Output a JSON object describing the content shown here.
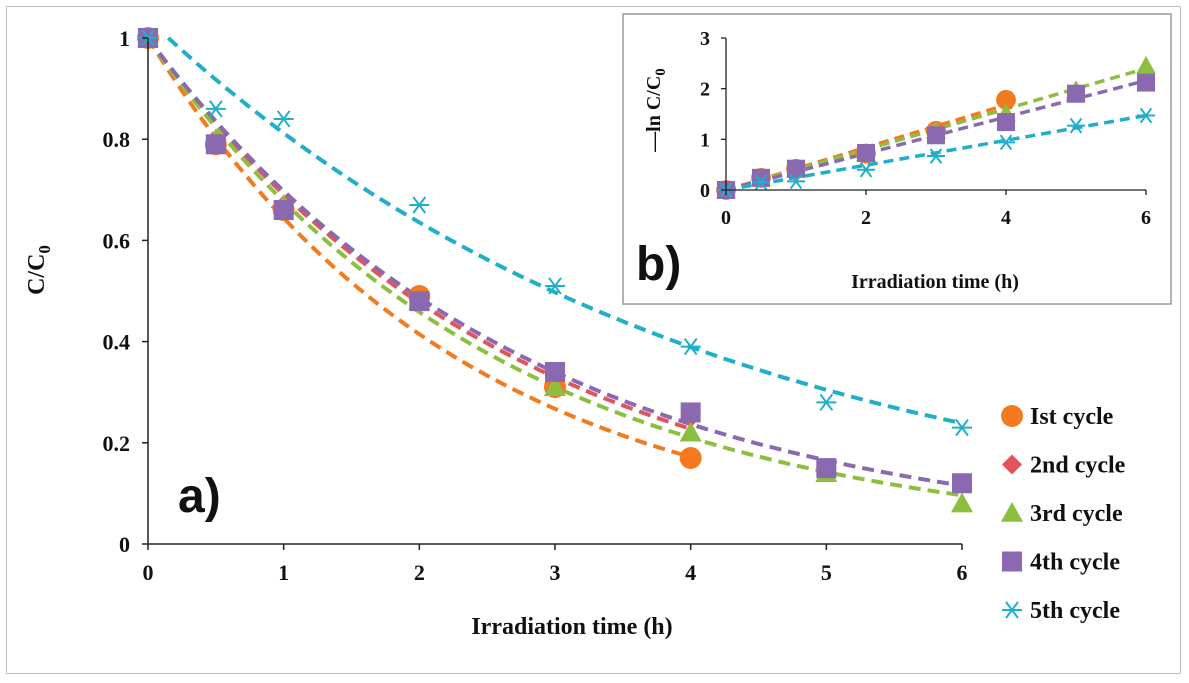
{
  "chart_data": [
    {
      "type": "scatter",
      "panel_label": "a)",
      "xlabel": "Irradiation time (h)",
      "ylabel": "C/C",
      "ylabel_sub": "0",
      "xlim": [
        0,
        6
      ],
      "ylim": [
        0,
        1
      ],
      "xticks": [
        "0",
        "1",
        "2",
        "3",
        "4",
        "5",
        "6"
      ],
      "yticks": [
        "0",
        "0.2",
        "0.4",
        "0.6",
        "0.8",
        "1"
      ],
      "series": [
        {
          "name": "Ist cycle",
          "marker": "circle",
          "color": "#f47a20",
          "x": [
            0,
            0.5,
            1,
            2,
            3,
            4
          ],
          "y": [
            1.0,
            0.79,
            0.66,
            0.49,
            0.31,
            0.17
          ],
          "fit_k": 0.44,
          "fit_range": [
            0,
            4
          ]
        },
        {
          "name": "2nd cycle",
          "marker": "diamond",
          "color": "#e0555b",
          "x": [
            0,
            0.5,
            1,
            2,
            3,
            4
          ],
          "y": [
            1.0,
            0.79,
            0.67,
            0.48,
            0.34,
            0.25
          ],
          "fit_k": 0.37,
          "fit_range": [
            0,
            4
          ]
        },
        {
          "name": "3rd cycle",
          "marker": "triangle",
          "color": "#8cbf3f",
          "x": [
            0,
            0.5,
            1,
            2,
            3,
            4,
            5,
            6
          ],
          "y": [
            1.0,
            0.8,
            0.67,
            0.48,
            0.31,
            0.22,
            0.14,
            0.08
          ],
          "fit_k": 0.39,
          "fit_range": [
            0,
            6
          ]
        },
        {
          "name": "4th cycle",
          "marker": "square",
          "color": "#8a69b0",
          "x": [
            0,
            0.5,
            1,
            2,
            3,
            4,
            5,
            6
          ],
          "y": [
            1.0,
            0.79,
            0.66,
            0.48,
            0.34,
            0.26,
            0.15,
            0.12
          ],
          "fit_k": 0.36,
          "fit_range": [
            0,
            6
          ]
        },
        {
          "name": "5th cycle",
          "marker": "asterisk",
          "color": "#21aecb",
          "x": [
            0,
            0.5,
            1,
            2,
            3,
            4,
            5,
            6
          ],
          "y": [
            1.0,
            0.86,
            0.84,
            0.67,
            0.51,
            0.39,
            0.28,
            0.23
          ],
          "fit_k": 0.245,
          "fit_range": [
            0.15,
            6
          ]
        }
      ],
      "legend_position": "bottom-right"
    },
    {
      "type": "scatter",
      "panel_label": "b)",
      "xlabel": "Irradiation  time (h)",
      "ylabel": "—ln C/C",
      "ylabel_sub": "0",
      "xlim": [
        0,
        6
      ],
      "ylim": [
        0,
        3
      ],
      "xticks": [
        "0",
        "2",
        "4",
        "6"
      ],
      "yticks": [
        "0",
        "1",
        "2",
        "3"
      ],
      "series": [
        {
          "name": "Ist cycle",
          "marker": "circle",
          "color": "#f47a20",
          "x": [
            0,
            0.5,
            1,
            2,
            3,
            4
          ],
          "y": [
            0,
            0.24,
            0.42,
            0.72,
            1.17,
            1.78
          ],
          "fit_slope": 0.42,
          "fit_range": [
            0,
            4
          ]
        },
        {
          "name": "2nd cycle",
          "marker": "diamond",
          "color": "#e0555b",
          "x": [
            0,
            0.5,
            1,
            2,
            3,
            4
          ],
          "y": [
            0,
            0.24,
            0.4,
            0.73,
            1.08,
            1.39
          ],
          "fit_slope": 0.4,
          "fit_range": [
            0,
            4
          ]
        },
        {
          "name": "3rd cycle",
          "marker": "triangle",
          "color": "#8cbf3f",
          "x": [
            0,
            0.5,
            1,
            2,
            3,
            4,
            5,
            6
          ],
          "y": [
            0,
            0.22,
            0.4,
            0.73,
            1.17,
            1.51,
            1.97,
            2.45
          ],
          "fit_slope": 0.4,
          "fit_range": [
            0,
            6
          ]
        },
        {
          "name": "4th cycle",
          "marker": "square",
          "color": "#8a69b0",
          "x": [
            0,
            0.5,
            1,
            2,
            3,
            4,
            5,
            6
          ],
          "y": [
            0,
            0.24,
            0.42,
            0.73,
            1.08,
            1.34,
            1.9,
            2.12
          ],
          "fit_slope": 0.36,
          "fit_range": [
            0,
            6
          ]
        },
        {
          "name": "5th cycle",
          "marker": "asterisk",
          "color": "#21aecb",
          "x": [
            0,
            0.5,
            1,
            2,
            3,
            4,
            5,
            6
          ],
          "y": [
            0,
            0.15,
            0.17,
            0.4,
            0.67,
            0.94,
            1.27,
            1.47
          ],
          "fit_slope": 0.245,
          "fit_range": [
            0,
            6
          ]
        }
      ]
    }
  ]
}
